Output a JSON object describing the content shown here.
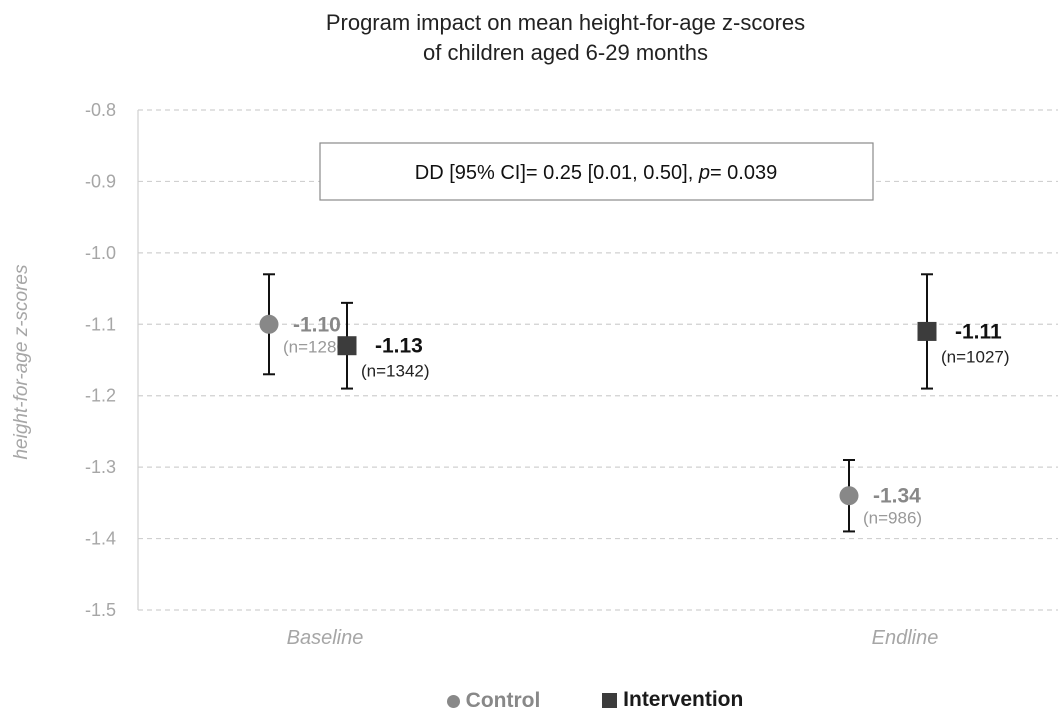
{
  "chart_data": {
    "type": "scatter",
    "title": "Program impact on mean height-for-age z-scores of children aged 6-29 months",
    "title_lines": [
      "Program impact on mean height-for-age z-scores",
      "of children aged 6-29 months"
    ],
    "ylabel": "height-for-age z-scores",
    "xlabel": "",
    "categories": [
      "Baseline",
      "Endline"
    ],
    "ylim": [
      -1.5,
      -0.8
    ],
    "yticks": [
      "-0.8",
      "-0.9",
      "-1.0",
      "-1.1",
      "-1.2",
      "-1.3",
      "-1.4",
      "-1.5"
    ],
    "grid": true,
    "legend_position": "bottom",
    "series": [
      {
        "name": "Control",
        "color": "#888888",
        "marker": "circle",
        "points": [
          {
            "category": "Baseline",
            "value": -1.1,
            "ci": [
              -1.17,
              -1.03
            ],
            "label": "-1.10",
            "n_label": "(n=1286)"
          },
          {
            "category": "Endline",
            "value": -1.34,
            "ci": [
              -1.39,
              -1.29
            ],
            "label": "-1.34",
            "n_label": "(n=986)"
          }
        ]
      },
      {
        "name": "Intervention",
        "color": "#3c3c3c",
        "marker": "square",
        "points": [
          {
            "category": "Baseline",
            "value": -1.13,
            "ci": [
              -1.19,
              -1.07
            ],
            "label": "-1.13",
            "n_label": "(n=1342)"
          },
          {
            "category": "Endline",
            "value": -1.11,
            "ci": [
              -1.19,
              -1.03
            ],
            "label": "-1.11",
            "n_label": "(n=1027)"
          }
        ]
      }
    ],
    "annotation": {
      "prefix": "DD [95% CI]= 0.25 [0.01, 0.50], ",
      "p_symbol": "p",
      "suffix": "= 0.039"
    }
  }
}
